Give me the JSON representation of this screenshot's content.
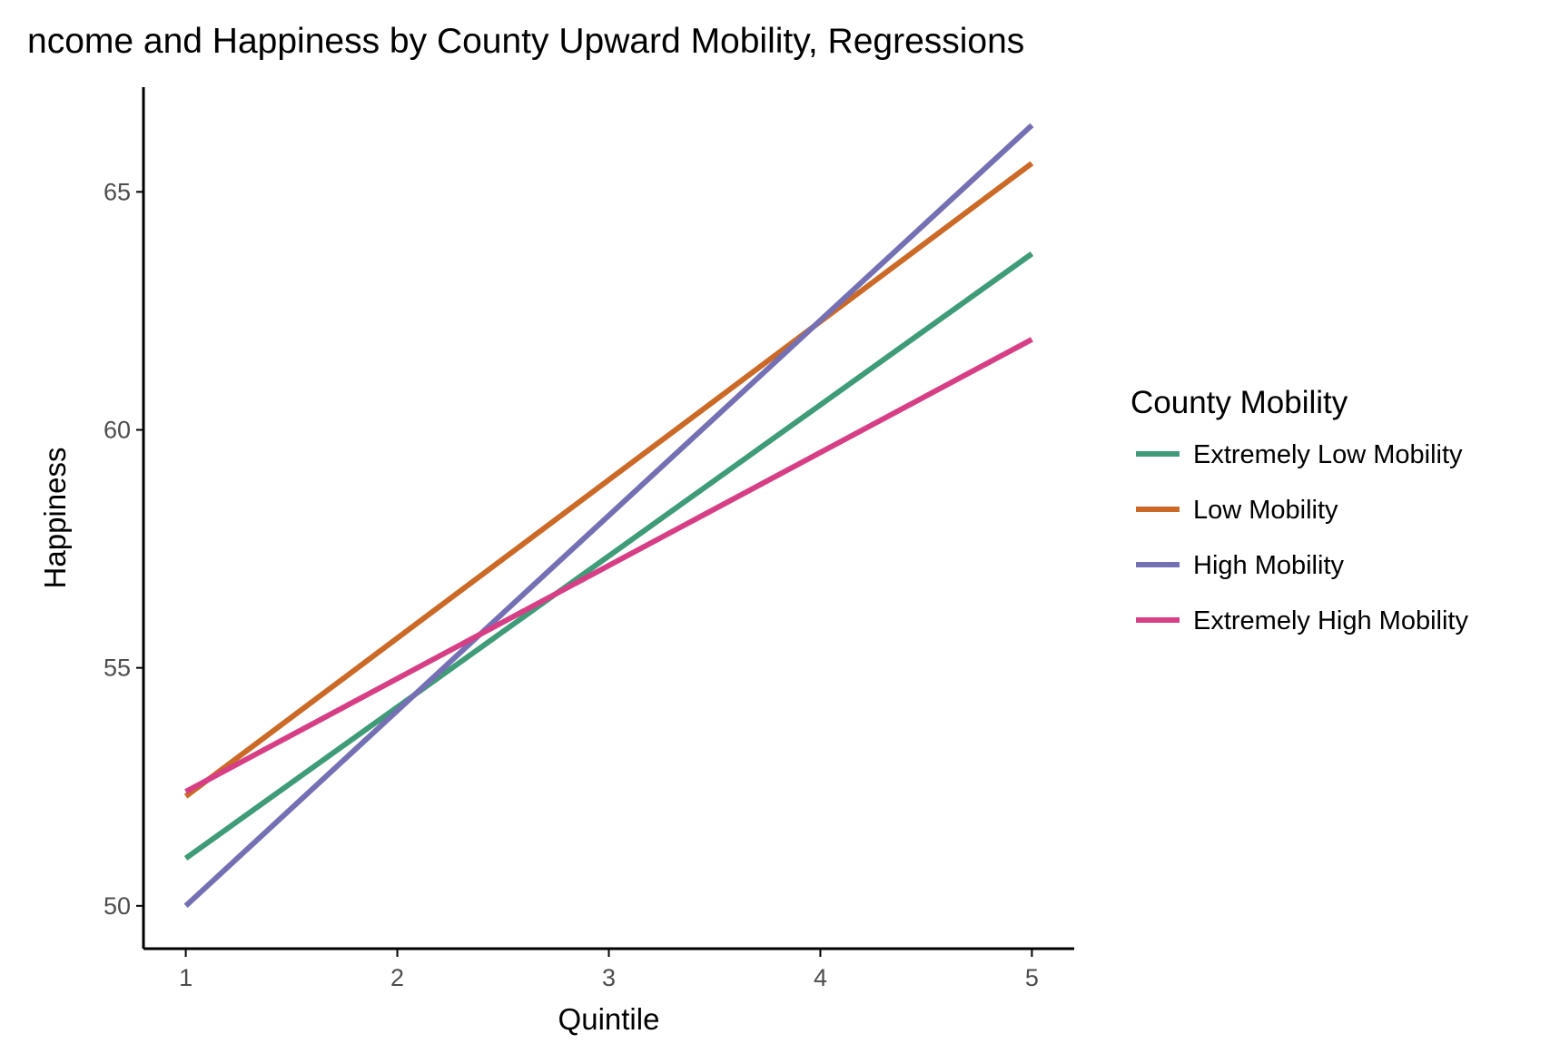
{
  "chart_data": {
    "type": "line",
    "title": "ncome and Happiness by County Upward Mobility, Regressions",
    "xlabel": "Quintile",
    "ylabel": "Happiness",
    "x": [
      1,
      5
    ],
    "xticks": [
      "1",
      "2",
      "3",
      "4",
      "5"
    ],
    "yticks": [
      "50",
      "55",
      "60",
      "65"
    ],
    "xlim": [
      0.8,
      5.2
    ],
    "ylim": [
      49.1,
      67.2
    ],
    "grid": false,
    "legend": {
      "title": "County Mobility",
      "position": "right"
    },
    "series": [
      {
        "name": "Extremely Low Mobility",
        "color": "#3f9b78",
        "values": [
          51.0,
          63.7
        ]
      },
      {
        "name": "Low Mobility",
        "color": "#cb6a27",
        "values": [
          52.3,
          65.6
        ]
      },
      {
        "name": "High Mobility",
        "color": "#7570b3",
        "values": [
          50.0,
          66.4
        ]
      },
      {
        "name": "Extremely High Mobility",
        "color": "#d63f85",
        "values": [
          52.4,
          61.9
        ]
      }
    ]
  }
}
